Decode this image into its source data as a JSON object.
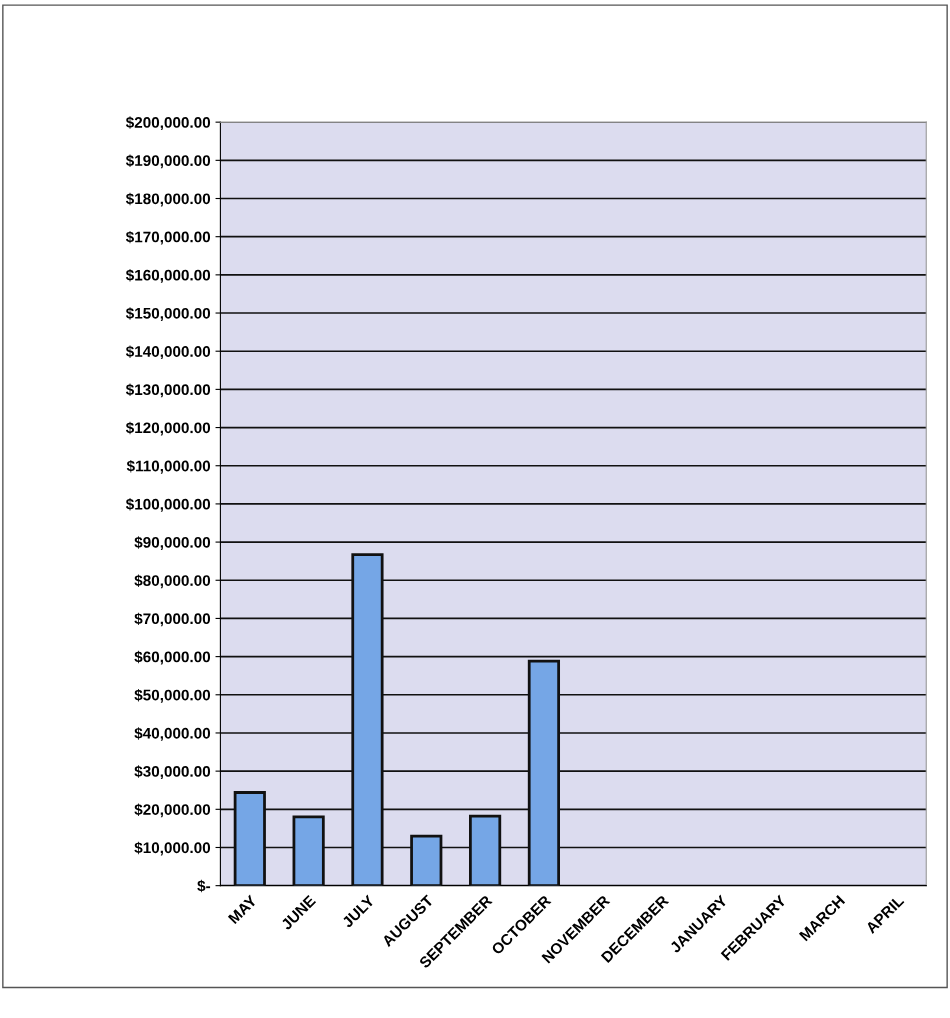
{
  "chart_data": {
    "type": "bar",
    "categories": [
      "MAY",
      "JUNE",
      "JULY",
      "AUGUST",
      "SEPTEMBER",
      "OCTOBER",
      "NOVEMBER",
      "DECEMBER",
      "JANUARY",
      "FEBRUARY",
      "MARCH",
      "APRIL"
    ],
    "values": [
      24400,
      18000,
      86700,
      13000,
      18200,
      58800,
      null,
      null,
      null,
      null,
      null,
      null
    ],
    "color": "#75a6e6",
    "ylim": [
      0,
      200000
    ],
    "yticks": [
      {
        "value": 0,
        "label": "$-"
      },
      {
        "value": 10000,
        "label": "$10,000.00"
      },
      {
        "value": 20000,
        "label": "$20,000.00"
      },
      {
        "value": 30000,
        "label": "$30,000.00"
      },
      {
        "value": 40000,
        "label": "$40,000.00"
      },
      {
        "value": 50000,
        "label": "$50,000.00"
      },
      {
        "value": 60000,
        "label": "$60,000.00"
      },
      {
        "value": 70000,
        "label": "$70,000.00"
      },
      {
        "value": 80000,
        "label": "$80,000.00"
      },
      {
        "value": 90000,
        "label": "$90,000.00"
      },
      {
        "value": 100000,
        "label": "$100,000.00"
      },
      {
        "value": 110000,
        "label": "$110,000.00"
      },
      {
        "value": 120000,
        "label": "$120,000.00"
      },
      {
        "value": 130000,
        "label": "$130,000.00"
      },
      {
        "value": 140000,
        "label": "$140,000.00"
      },
      {
        "value": 150000,
        "label": "$150,000.00"
      },
      {
        "value": 160000,
        "label": "$160,000.00"
      },
      {
        "value": 170000,
        "label": "$170,000.00"
      },
      {
        "value": 180000,
        "label": "$180,000.00"
      },
      {
        "value": 190000,
        "label": "$190,000.00"
      },
      {
        "value": 200000,
        "label": "$200,000.00"
      }
    ],
    "grid": "y",
    "legend": false
  }
}
